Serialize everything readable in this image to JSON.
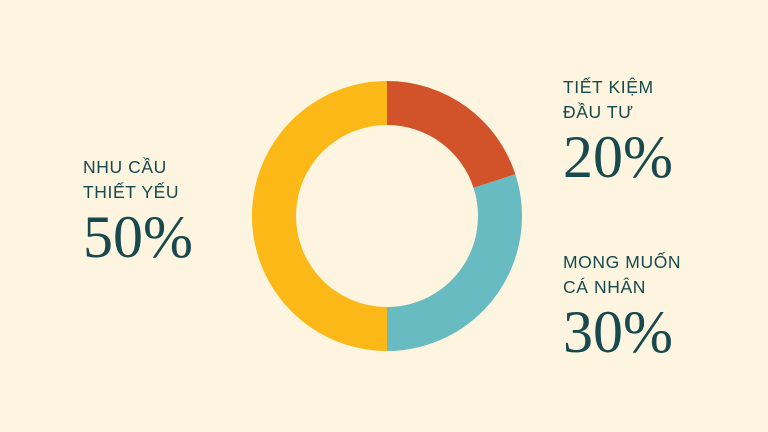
{
  "background_color": "#fdf5df",
  "text_color": "#17494e",
  "chart_data": {
    "type": "pie",
    "subtype": "donut",
    "title": "",
    "start_angle_deg": 0,
    "direction": "clockwise",
    "legend_position": "callouts",
    "slices": [
      {
        "label": "TIẾT KIỆM ĐẦU TƯ",
        "value": 20,
        "percent_label": "20%",
        "color": "#d2532a"
      },
      {
        "label": "MONG MUỐN CÁ NHÂN",
        "value": 30,
        "percent_label": "30%",
        "color": "#68bcc1"
      },
      {
        "label": "NHU CẦU THIẾT YẾU",
        "value": 50,
        "percent_label": "50%",
        "color": "#fcb817"
      }
    ]
  },
  "callouts": {
    "left": {
      "line1": "NHU CẦU",
      "line2": "THIẾT YẾU",
      "pct": "50%"
    },
    "top_right": {
      "line1": "TIẾT KIỆM",
      "line2": "ĐẦU TƯ",
      "pct": "20%"
    },
    "bottom_right": {
      "line1": "MONG MUỐN",
      "line2": "CÁ NHÂN",
      "pct": "30%"
    }
  }
}
